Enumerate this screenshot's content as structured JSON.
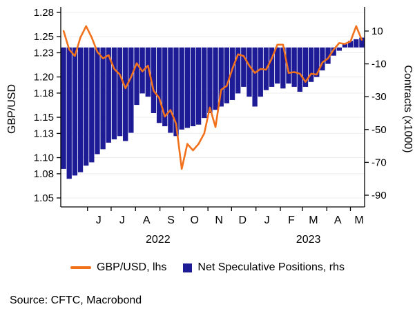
{
  "chart_data": {
    "type": "combo",
    "title": "",
    "x_axis": {
      "months": [
        "J",
        "J",
        "A",
        "S",
        "O",
        "N",
        "D",
        "J",
        "F",
        "M",
        "A",
        "M"
      ],
      "years": [
        "2022",
        "2023"
      ]
    },
    "left_axis": {
      "label": "GBP/USD",
      "range": [
        1.05,
        1.28
      ],
      "ticks": [
        1.05,
        1.08,
        1.1,
        1.13,
        1.15,
        1.18,
        1.2,
        1.23,
        1.25,
        1.28
      ]
    },
    "right_axis": {
      "label": "Contracts (x1000)",
      "range": [
        -90,
        10
      ],
      "ticks": [
        10,
        -10,
        -30,
        -50,
        -70,
        -90
      ]
    },
    "grid": true,
    "legend_position": "bottom",
    "series": [
      {
        "name": "GBP/USD, lhs",
        "type": "line",
        "axis": "left",
        "color": "#f2711c",
        "values": [
          1.257,
          1.234,
          1.226,
          1.249,
          1.263,
          1.249,
          1.231,
          1.223,
          1.227,
          1.21,
          1.203,
          1.186,
          1.2,
          1.217,
          1.207,
          1.214,
          1.183,
          1.174,
          1.151,
          1.159,
          1.142,
          1.086,
          1.117,
          1.109,
          1.117,
          1.13,
          1.162,
          1.138,
          1.184,
          1.189,
          1.21,
          1.228,
          1.226,
          1.214,
          1.205,
          1.21,
          1.209,
          1.223,
          1.24,
          1.24,
          1.205,
          1.206,
          1.204,
          1.194,
          1.204,
          1.203,
          1.218,
          1.223,
          1.234,
          1.242,
          1.241,
          1.244,
          1.263,
          1.246
        ]
      },
      {
        "name": "Net Speculative Positions, rhs",
        "type": "bar",
        "axis": "right",
        "color": "#1e1b96",
        "values": [
          -74,
          -80,
          -78,
          -76,
          -72,
          -70,
          -65,
          -62,
          -58,
          -56,
          -54,
          -57,
          -52,
          -35,
          -28,
          -30,
          -40,
          -46,
          -48,
          -52,
          -54,
          -50,
          -49,
          -48,
          -47,
          -43,
          -40,
          -38,
          -36,
          -34,
          -32,
          -28,
          -24,
          -30,
          -36,
          -30,
          -26,
          -24,
          -22,
          -25,
          -22,
          -24,
          -27,
          -24,
          -21,
          -18,
          -14,
          -10,
          -5,
          -2,
          2,
          4,
          5,
          6
        ]
      }
    ]
  },
  "source": {
    "text": "Source: CFTC, Macrobond"
  }
}
